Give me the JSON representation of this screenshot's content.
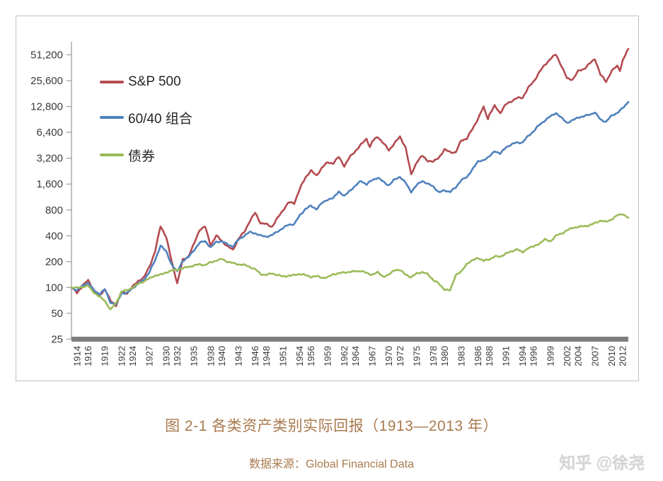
{
  "figure": {
    "title": "图 2-1 各类资产类别实际回报（1913—2013 年）",
    "source": "数据来源：Global Financial Data",
    "watermark": "知乎 @徐尧",
    "title_color": "#a97a4e",
    "watermark_color": "#d4d4d4"
  },
  "chart_data": {
    "type": "line",
    "title": "",
    "xlabel": "",
    "ylabel": "",
    "y_scale": "log2",
    "ylim": [
      25,
      51200
    ],
    "xlim": [
      1913,
      2013
    ],
    "grid": false,
    "legend_position": "inside-top-left",
    "y_tick_labels": [
      "51,200",
      "25,600",
      "12,800",
      "6,400",
      "3,200",
      "1,600",
      "800",
      "400",
      "200",
      "100",
      "50",
      "25"
    ],
    "y_tick_values": [
      51200,
      25600,
      12800,
      6400,
      3200,
      1600,
      800,
      400,
      200,
      100,
      50,
      25
    ],
    "x_ticks": [
      1914,
      1916,
      1919,
      1922,
      1924,
      1927,
      1930,
      1932,
      1935,
      1938,
      1940,
      1943,
      1946,
      1948,
      1951,
      1954,
      1956,
      1959,
      1962,
      1964,
      1967,
      1970,
      1972,
      1975,
      1978,
      1980,
      1983,
      1986,
      1988,
      1991,
      1994,
      1996,
      1999,
      2002,
      2004,
      2007,
      2010,
      2012
    ],
    "axis_color": "#9e9e9e",
    "baseline_color": "#7f7f7f",
    "tick_label_color": "#3a3a3a",
    "series": [
      {
        "name": "S&P 500",
        "color": "#b44a50",
        "points": [
          [
            1913,
            100
          ],
          [
            1914,
            87
          ],
          [
            1915,
            104
          ],
          [
            1916,
            122
          ],
          [
            1917,
            92
          ],
          [
            1918,
            80
          ],
          [
            1919,
            96
          ],
          [
            1920,
            70
          ],
          [
            1921,
            62
          ],
          [
            1922,
            88
          ],
          [
            1923,
            86
          ],
          [
            1924,
            102
          ],
          [
            1925,
            120
          ],
          [
            1926,
            130
          ],
          [
            1927,
            175
          ],
          [
            1928,
            260
          ],
          [
            1929,
            520
          ],
          [
            1930,
            390
          ],
          [
            1931,
            200
          ],
          [
            1932,
            112
          ],
          [
            1933,
            210
          ],
          [
            1934,
            230
          ],
          [
            1935,
            320
          ],
          [
            1936,
            470
          ],
          [
            1937,
            510
          ],
          [
            1938,
            310
          ],
          [
            1939,
            400
          ],
          [
            1940,
            350
          ],
          [
            1941,
            300
          ],
          [
            1942,
            275
          ],
          [
            1943,
            370
          ],
          [
            1944,
            440
          ],
          [
            1945,
            590
          ],
          [
            1946,
            740
          ],
          [
            1947,
            560
          ],
          [
            1948,
            545
          ],
          [
            1949,
            510
          ],
          [
            1950,
            640
          ],
          [
            1951,
            800
          ],
          [
            1952,
            975
          ],
          [
            1953,
            960
          ],
          [
            1954,
            1400
          ],
          [
            1955,
            1900
          ],
          [
            1956,
            2300
          ],
          [
            1957,
            2000
          ],
          [
            1958,
            2500
          ],
          [
            1959,
            2850
          ],
          [
            1960,
            2800
          ],
          [
            1961,
            3300
          ],
          [
            1962,
            2600
          ],
          [
            1963,
            3300
          ],
          [
            1964,
            3900
          ],
          [
            1965,
            4600
          ],
          [
            1966,
            5400
          ],
          [
            1966.6,
            4300
          ],
          [
            1967,
            5000
          ],
          [
            1968,
            5700
          ],
          [
            1969,
            4800
          ],
          [
            1970,
            3950
          ],
          [
            1971,
            4800
          ],
          [
            1972,
            5650
          ],
          [
            1973,
            4300
          ],
          [
            1974,
            2050
          ],
          [
            1975,
            2900
          ],
          [
            1976,
            3400
          ],
          [
            1977,
            3000
          ],
          [
            1978,
            2900
          ],
          [
            1979,
            3300
          ],
          [
            1980,
            4000
          ],
          [
            1981,
            3800
          ],
          [
            1982,
            3700
          ],
          [
            1983,
            5200
          ],
          [
            1984,
            5400
          ],
          [
            1985,
            7000
          ],
          [
            1986,
            9200
          ],
          [
            1987,
            12600
          ],
          [
            1987.8,
            9200
          ],
          [
            1988,
            10200
          ],
          [
            1989,
            13000
          ],
          [
            1990,
            10800
          ],
          [
            1991,
            13500
          ],
          [
            1992,
            14800
          ],
          [
            1993,
            16000
          ],
          [
            1994,
            16200
          ],
          [
            1995,
            21000
          ],
          [
            1996,
            25000
          ],
          [
            1997,
            32000
          ],
          [
            1998,
            39000
          ],
          [
            1999,
            46000
          ],
          [
            2000,
            51500
          ],
          [
            2001,
            38000
          ],
          [
            2002,
            27000
          ],
          [
            2003,
            26500
          ],
          [
            2004,
            33000
          ],
          [
            2005,
            35000
          ],
          [
            2006,
            40000
          ],
          [
            2007,
            46000
          ],
          [
            2008,
            30000
          ],
          [
            2009,
            25000
          ],
          [
            2010,
            33000
          ],
          [
            2011,
            38000
          ],
          [
            2011.5,
            34000
          ],
          [
            2012,
            44000
          ],
          [
            2013,
            60000
          ]
        ]
      },
      {
        "name": "60/40 组合",
        "color": "#4f81bd",
        "points": [
          [
            1913,
            100
          ],
          [
            1914,
            93
          ],
          [
            1915,
            105
          ],
          [
            1916,
            113
          ],
          [
            1917,
            93
          ],
          [
            1918,
            84
          ],
          [
            1919,
            95
          ],
          [
            1920,
            67
          ],
          [
            1921,
            63
          ],
          [
            1922,
            86
          ],
          [
            1923,
            86
          ],
          [
            1924,
            98
          ],
          [
            1925,
            112
          ],
          [
            1926,
            122
          ],
          [
            1927,
            152
          ],
          [
            1928,
            205
          ],
          [
            1929,
            310
          ],
          [
            1930,
            262
          ],
          [
            1931,
            185
          ],
          [
            1932,
            152
          ],
          [
            1933,
            205
          ],
          [
            1934,
            225
          ],
          [
            1935,
            272
          ],
          [
            1936,
            330
          ],
          [
            1937,
            348
          ],
          [
            1938,
            292
          ],
          [
            1939,
            340
          ],
          [
            1940,
            345
          ],
          [
            1941,
            318
          ],
          [
            1942,
            300
          ],
          [
            1943,
            360
          ],
          [
            1944,
            400
          ],
          [
            1945,
            440
          ],
          [
            1946,
            428
          ],
          [
            1947,
            400
          ],
          [
            1948,
            392
          ],
          [
            1949,
            405
          ],
          [
            1950,
            450
          ],
          [
            1951,
            490
          ],
          [
            1952,
            540
          ],
          [
            1953,
            545
          ],
          [
            1954,
            690
          ],
          [
            1955,
            820
          ],
          [
            1956,
            890
          ],
          [
            1957,
            820
          ],
          [
            1958,
            960
          ],
          [
            1959,
            1060
          ],
          [
            1960,
            1090
          ],
          [
            1961,
            1320
          ],
          [
            1962,
            1150
          ],
          [
            1963,
            1350
          ],
          [
            1964,
            1520
          ],
          [
            1965,
            1750
          ],
          [
            1966,
            1580
          ],
          [
            1967,
            1780
          ],
          [
            1968,
            1900
          ],
          [
            1969,
            1700
          ],
          [
            1970,
            1550
          ],
          [
            1971,
            1800
          ],
          [
            1972,
            1950
          ],
          [
            1973,
            1650
          ],
          [
            1974,
            1300
          ],
          [
            1975,
            1550
          ],
          [
            1976,
            1750
          ],
          [
            1977,
            1600
          ],
          [
            1978,
            1500
          ],
          [
            1979,
            1280
          ],
          [
            1980,
            1350
          ],
          [
            1981,
            1300
          ],
          [
            1982,
            1450
          ],
          [
            1983,
            1800
          ],
          [
            1984,
            1900
          ],
          [
            1985,
            2400
          ],
          [
            1986,
            2900
          ],
          [
            1987,
            3060
          ],
          [
            1988,
            3300
          ],
          [
            1989,
            3900
          ],
          [
            1990,
            3600
          ],
          [
            1991,
            4300
          ],
          [
            1992,
            4600
          ],
          [
            1993,
            4900
          ],
          [
            1994,
            4850
          ],
          [
            1995,
            5800
          ],
          [
            1996,
            6600
          ],
          [
            1997,
            7800
          ],
          [
            1998,
            8800
          ],
          [
            1999,
            9800
          ],
          [
            2000,
            10800
          ],
          [
            2001,
            9400
          ],
          [
            2002,
            8300
          ],
          [
            2003,
            8800
          ],
          [
            2004,
            9600
          ],
          [
            2005,
            9800
          ],
          [
            2006,
            10300
          ],
          [
            2007,
            10900
          ],
          [
            2008,
            9000
          ],
          [
            2009,
            8500
          ],
          [
            2010,
            10000
          ],
          [
            2011,
            10800
          ],
          [
            2012,
            12200
          ],
          [
            2013,
            14500
          ]
        ]
      },
      {
        "name": "债券",
        "color": "#9bbb59",
        "points": [
          [
            1913,
            100
          ],
          [
            1914,
            99
          ],
          [
            1915,
            102
          ],
          [
            1916,
            104
          ],
          [
            1917,
            88
          ],
          [
            1918,
            78
          ],
          [
            1919,
            70
          ],
          [
            1920,
            55
          ],
          [
            1921,
            66
          ],
          [
            1922,
            90
          ],
          [
            1923,
            93
          ],
          [
            1924,
            100
          ],
          [
            1925,
            110
          ],
          [
            1926,
            118
          ],
          [
            1927,
            127
          ],
          [
            1928,
            138
          ],
          [
            1929,
            140
          ],
          [
            1930,
            150
          ],
          [
            1931,
            157
          ],
          [
            1932,
            161
          ],
          [
            1933,
            167
          ],
          [
            1934,
            174
          ],
          [
            1935,
            180
          ],
          [
            1936,
            186
          ],
          [
            1937,
            182
          ],
          [
            1938,
            196
          ],
          [
            1939,
            206
          ],
          [
            1940,
            214
          ],
          [
            1941,
            200
          ],
          [
            1942,
            192
          ],
          [
            1943,
            186
          ],
          [
            1944,
            183
          ],
          [
            1945,
            174
          ],
          [
            1946,
            163
          ],
          [
            1947,
            143
          ],
          [
            1948,
            140
          ],
          [
            1949,
            146
          ],
          [
            1950,
            140
          ],
          [
            1951,
            134
          ],
          [
            1952,
            137
          ],
          [
            1953,
            139
          ],
          [
            1954,
            144
          ],
          [
            1955,
            139
          ],
          [
            1956,
            133
          ],
          [
            1957,
            135
          ],
          [
            1958,
            130
          ],
          [
            1959,
            131
          ],
          [
            1960,
            143
          ],
          [
            1961,
            146
          ],
          [
            1962,
            150
          ],
          [
            1963,
            152
          ],
          [
            1964,
            154
          ],
          [
            1965,
            156
          ],
          [
            1966,
            147
          ],
          [
            1967,
            141
          ],
          [
            1968,
            150
          ],
          [
            1969,
            134
          ],
          [
            1970,
            140
          ],
          [
            1971,
            161
          ],
          [
            1972,
            158
          ],
          [
            1973,
            143
          ],
          [
            1974,
            130
          ],
          [
            1975,
            147
          ],
          [
            1976,
            150
          ],
          [
            1977,
            143
          ],
          [
            1978,
            122
          ],
          [
            1979,
            110
          ],
          [
            1980,
            95
          ],
          [
            1981,
            92
          ],
          [
            1982,
            140
          ],
          [
            1983,
            152
          ],
          [
            1984,
            190
          ],
          [
            1985,
            205
          ],
          [
            1986,
            222
          ],
          [
            1987,
            204
          ],
          [
            1988,
            212
          ],
          [
            1989,
            230
          ],
          [
            1990,
            227
          ],
          [
            1991,
            250
          ],
          [
            1992,
            260
          ],
          [
            1993,
            282
          ],
          [
            1994,
            254
          ],
          [
            1995,
            290
          ],
          [
            1996,
            298
          ],
          [
            1997,
            325
          ],
          [
            1998,
            362
          ],
          [
            1999,
            345
          ],
          [
            2000,
            400
          ],
          [
            2001,
            425
          ],
          [
            2002,
            462
          ],
          [
            2003,
            495
          ],
          [
            2004,
            508
          ],
          [
            2005,
            515
          ],
          [
            2006,
            530
          ],
          [
            2007,
            560
          ],
          [
            2008,
            602
          ],
          [
            2009,
            580
          ],
          [
            2010,
            622
          ],
          [
            2011,
            690
          ],
          [
            2012,
            718
          ],
          [
            2013,
            650
          ]
        ]
      }
    ]
  }
}
